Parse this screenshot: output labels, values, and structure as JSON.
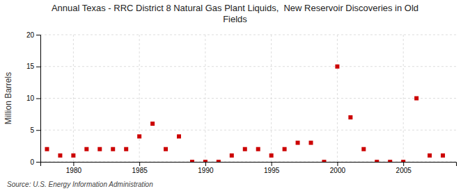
{
  "chart_data": {
    "type": "scatter",
    "title": "Annual Texas - RRC District 8 Natural Gas Plant Liquids,  New Reservoir Discoveries in Old\nFields",
    "ylabel": "Million Barrels",
    "annotations": [
      "Source: U.S. Energy Information Administration"
    ],
    "x": [
      1978,
      1979,
      1980,
      1981,
      1982,
      1983,
      1984,
      1985,
      1986,
      1987,
      1988,
      1989,
      1990,
      1991,
      1992,
      1993,
      1994,
      1995,
      1996,
      1997,
      1998,
      1999,
      2000,
      2001,
      2002,
      2003,
      2004,
      2005,
      2006,
      2007,
      2008
    ],
    "values": [
      2.0,
      1.0,
      1.0,
      2.0,
      2.0,
      2.0,
      2.0,
      4.0,
      6.0,
      2.0,
      4.0,
      0.0,
      0.0,
      0.0,
      1.0,
      2.0,
      2.0,
      1.0,
      2.0,
      3.0,
      3.0,
      0.0,
      15.0,
      7.0,
      2.0,
      0.0,
      0.0,
      0.0,
      10.0,
      1.0,
      1.0
    ],
    "color": "#cc0000",
    "marker": "square",
    "xlim": [
      1977.5,
      2009
    ],
    "ylim": [
      0,
      20
    ],
    "xticks": [
      1980,
      1985,
      1990,
      1995,
      2000,
      2005
    ],
    "yticks": [
      0,
      5,
      10,
      15,
      20
    ],
    "grid": true
  }
}
